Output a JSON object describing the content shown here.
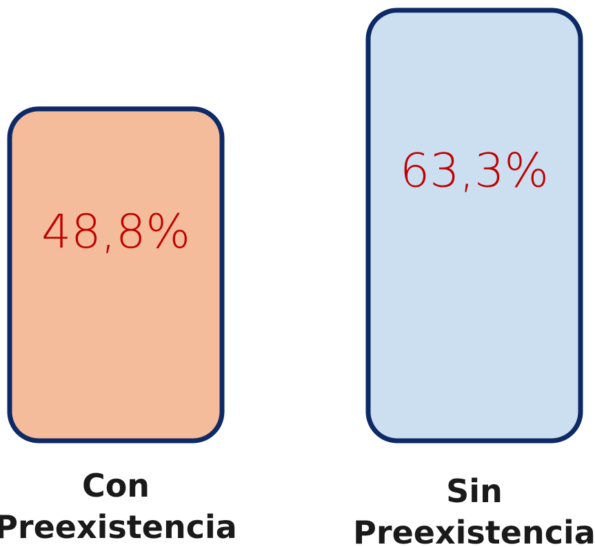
{
  "chart_data": {
    "type": "bar",
    "categories": [
      "Con Preexistencia",
      "Sin Preexistencia"
    ],
    "category_lines": [
      [
        "Con",
        "Preexistencia"
      ],
      [
        "Sin",
        "Preexistencia"
      ]
    ],
    "values": [
      48.8,
      63.3
    ],
    "value_labels": [
      "48,8%",
      "63,3%"
    ],
    "unit": "%",
    "bar_colors": [
      "#F4BC9A",
      "#CCDFF1"
    ],
    "bar_border_color": "#0E2A66",
    "value_label_color": "#C00000",
    "category_label_color": "#1A1A1A",
    "grid": false,
    "legend": "none"
  }
}
